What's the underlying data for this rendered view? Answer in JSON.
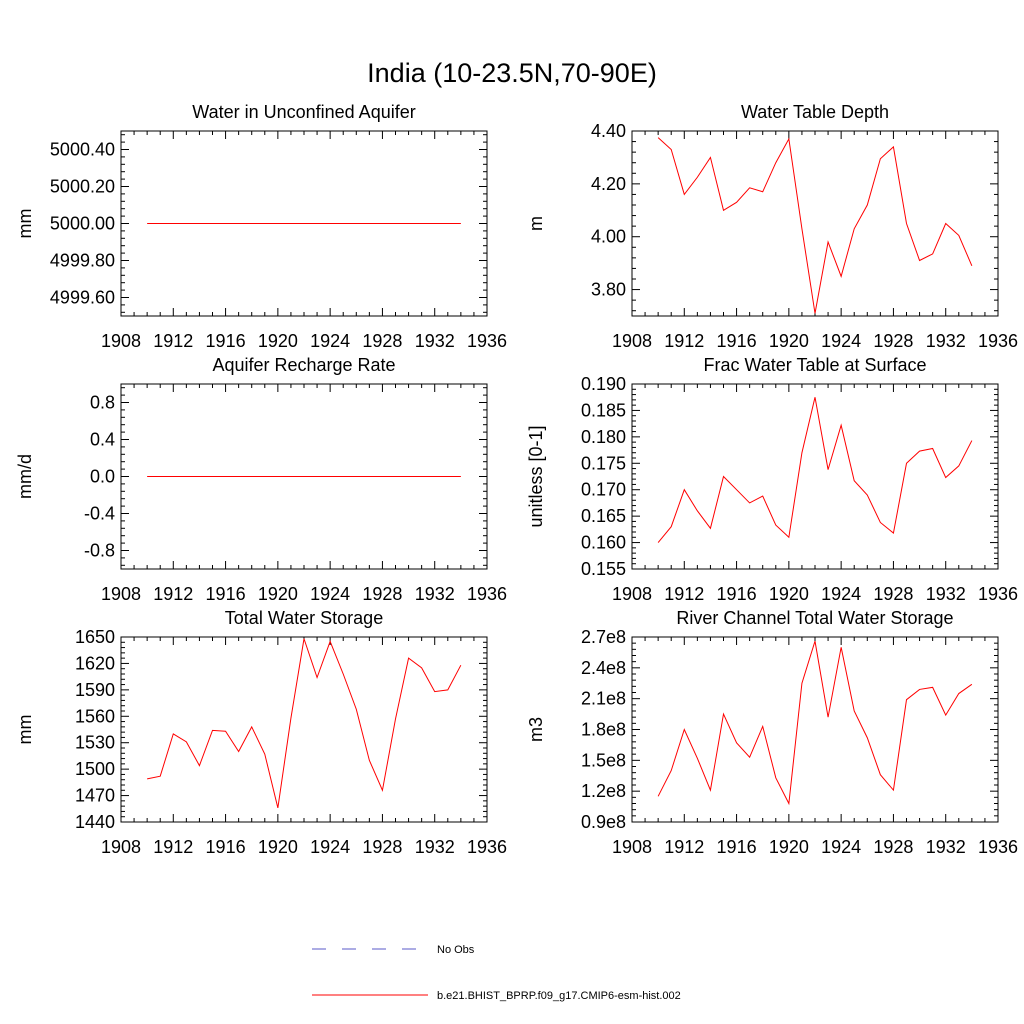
{
  "figure_title": "India (10-23.5N,70-90E)",
  "legend": {
    "obs_label": "No Obs",
    "obs_color": "#5a5ac8",
    "model_label": "b.e21.BHIST_BPRP.f09_g17.CMIP6-esm-hist.002",
    "model_color": "#ff0000"
  },
  "chart_data": [
    {
      "type": "line",
      "title": "Water in Unconfined Aquifer",
      "ylabel": "mm",
      "xlim": [
        1908,
        1936
      ],
      "ylim": [
        4999.5,
        5000.5
      ],
      "xticks": [
        1908,
        1912,
        1916,
        1920,
        1924,
        1928,
        1932,
        1936
      ],
      "yticks": [
        4999.6,
        4999.8,
        5000.0,
        5000.2,
        5000.4
      ],
      "ytick_labels": [
        "4999.60",
        "4999.80",
        "5000.00",
        "5000.20",
        "5000.40"
      ],
      "x": [
        1910,
        1911,
        1912,
        1913,
        1914,
        1915,
        1916,
        1917,
        1918,
        1919,
        1920,
        1921,
        1922,
        1923,
        1924,
        1925,
        1926,
        1927,
        1928,
        1929,
        1930,
        1931,
        1932,
        1933,
        1934
      ],
      "series": [
        {
          "values": [
            5000.0,
            5000.0,
            5000.0,
            5000.0,
            5000.0,
            5000.0,
            5000.0,
            5000.0,
            5000.0,
            5000.0,
            5000.0,
            5000.0,
            5000.0,
            5000.0,
            5000.0,
            5000.0,
            5000.0,
            5000.0,
            5000.0,
            5000.0,
            5000.0,
            5000.0,
            5000.0,
            5000.0,
            5000.0
          ],
          "color": "#ff0000"
        }
      ]
    },
    {
      "type": "line",
      "title": "Water Table Depth",
      "ylabel": "m",
      "xlim": [
        1908,
        1936
      ],
      "ylim": [
        3.7,
        4.4
      ],
      "xticks": [
        1908,
        1912,
        1916,
        1920,
        1924,
        1928,
        1932,
        1936
      ],
      "yticks": [
        3.8,
        4.0,
        4.2,
        4.4
      ],
      "ytick_labels": [
        "3.80",
        "4.00",
        "4.20",
        "4.40"
      ],
      "x": [
        1910,
        1911,
        1912,
        1913,
        1914,
        1915,
        1916,
        1917,
        1918,
        1919,
        1920,
        1921,
        1922,
        1923,
        1924,
        1925,
        1926,
        1927,
        1928,
        1929,
        1930,
        1931,
        1932,
        1933,
        1934
      ],
      "series": [
        {
          "values": [
            4.375,
            4.33,
            4.16,
            4.225,
            4.3,
            4.1,
            4.13,
            4.185,
            4.17,
            4.28,
            4.37,
            4.03,
            3.71,
            3.98,
            3.85,
            4.03,
            4.12,
            4.295,
            4.34,
            4.05,
            3.91,
            3.935,
            4.05,
            4.005,
            3.89
          ],
          "color": "#ff0000"
        }
      ]
    },
    {
      "type": "line",
      "title": "Aquifer Recharge Rate",
      "ylabel": "mm/d",
      "xlim": [
        1908,
        1936
      ],
      "ylim": [
        -1.0,
        1.0
      ],
      "xticks": [
        1908,
        1912,
        1916,
        1920,
        1924,
        1928,
        1932,
        1936
      ],
      "yticks": [
        -0.8,
        -0.4,
        0.0,
        0.4,
        0.8
      ],
      "ytick_labels": [
        "-0.8",
        "-0.4",
        "0.0",
        "0.4",
        "0.8"
      ],
      "x": [
        1910,
        1911,
        1912,
        1913,
        1914,
        1915,
        1916,
        1917,
        1918,
        1919,
        1920,
        1921,
        1922,
        1923,
        1924,
        1925,
        1926,
        1927,
        1928,
        1929,
        1930,
        1931,
        1932,
        1933,
        1934
      ],
      "series": [
        {
          "values": [
            0,
            0,
            0,
            0,
            0,
            0,
            0,
            0,
            0,
            0,
            0,
            0,
            0,
            0,
            0,
            0,
            0,
            0,
            0,
            0,
            0,
            0,
            0,
            0,
            0
          ],
          "color": "#ff0000"
        }
      ]
    },
    {
      "type": "line",
      "title": "Frac Water Table at Surface",
      "ylabel": "unitless [0-1]",
      "xlim": [
        1908,
        1936
      ],
      "ylim": [
        0.155,
        0.19
      ],
      "xticks": [
        1908,
        1912,
        1916,
        1920,
        1924,
        1928,
        1932,
        1936
      ],
      "yticks": [
        0.155,
        0.16,
        0.165,
        0.17,
        0.175,
        0.18,
        0.185,
        0.19
      ],
      "ytick_labels": [
        "0.155",
        "0.160",
        "0.165",
        "0.170",
        "0.175",
        "0.180",
        "0.185",
        "0.190"
      ],
      "x": [
        1910,
        1911,
        1912,
        1913,
        1914,
        1915,
        1916,
        1917,
        1918,
        1919,
        1920,
        1921,
        1922,
        1923,
        1924,
        1925,
        1926,
        1927,
        1928,
        1929,
        1930,
        1931,
        1932,
        1933,
        1934
      ],
      "series": [
        {
          "values": [
            0.16,
            0.163,
            0.17,
            0.166,
            0.1627,
            0.1725,
            0.17,
            0.1675,
            0.1688,
            0.1633,
            0.161,
            0.177,
            0.1875,
            0.1738,
            0.1822,
            0.1717,
            0.169,
            0.1638,
            0.1618,
            0.175,
            0.1773,
            0.1778,
            0.1723,
            0.1745,
            0.1793
          ],
          "color": "#ff0000"
        }
      ]
    },
    {
      "type": "line",
      "title": "Total Water Storage",
      "ylabel": "mm",
      "xlim": [
        1908,
        1936
      ],
      "ylim": [
        1440,
        1650
      ],
      "xticks": [
        1908,
        1912,
        1916,
        1920,
        1924,
        1928,
        1932,
        1936
      ],
      "yticks": [
        1440,
        1470,
        1500,
        1530,
        1560,
        1590,
        1620,
        1650
      ],
      "ytick_labels": [
        "1440",
        "1470",
        "1500",
        "1530",
        "1560",
        "1590",
        "1620",
        "1650"
      ],
      "x": [
        1910,
        1911,
        1912,
        1913,
        1914,
        1915,
        1916,
        1917,
        1918,
        1919,
        1920,
        1921,
        1922,
        1923,
        1924,
        1925,
        1926,
        1927,
        1928,
        1929,
        1930,
        1931,
        1932,
        1933,
        1934
      ],
      "series": [
        {
          "values": [
            1489,
            1492,
            1540,
            1531,
            1504,
            1544,
            1543,
            1520,
            1548,
            1517,
            1456,
            1558,
            1648,
            1604,
            1645,
            1608,
            1568,
            1510,
            1476,
            1557,
            1626,
            1615,
            1588,
            1590,
            1618
          ],
          "color": "#ff0000"
        }
      ]
    },
    {
      "type": "line",
      "title": "River Channel Total Water Storage",
      "ylabel": "m3",
      "xlim": [
        1908,
        1936
      ],
      "ylim": [
        90000000.0,
        270000000.0
      ],
      "xticks": [
        1908,
        1912,
        1916,
        1920,
        1924,
        1928,
        1932,
        1936
      ],
      "yticks": [
        90000000.0,
        120000000.0,
        150000000.0,
        180000000.0,
        210000000.0,
        240000000.0,
        270000000.0
      ],
      "ytick_labels": [
        "0.9e8",
        "1.2e8",
        "1.5e8",
        "1.8e8",
        "2.1e8",
        "2.4e8",
        "2.7e8"
      ],
      "x": [
        1910,
        1911,
        1912,
        1913,
        1914,
        1915,
        1916,
        1917,
        1918,
        1919,
        1920,
        1921,
        1922,
        1923,
        1924,
        1925,
        1926,
        1927,
        1928,
        1929,
        1930,
        1931,
        1932,
        1933,
        1934
      ],
      "series": [
        {
          "values": [
            115000000.0,
            140000000.0,
            180000000.0,
            152000000.0,
            121000000.0,
            195000000.0,
            167000000.0,
            153000000.0,
            183000000.0,
            133000000.0,
            108000000.0,
            225000000.0,
            266000000.0,
            192000000.0,
            260000000.0,
            198000000.0,
            172000000.0,
            136000000.0,
            121000000.0,
            209000000.0,
            219000000.0,
            221000000.0,
            194000000.0,
            215000000.0,
            224000000.0
          ],
          "color": "#ff0000"
        }
      ]
    }
  ]
}
